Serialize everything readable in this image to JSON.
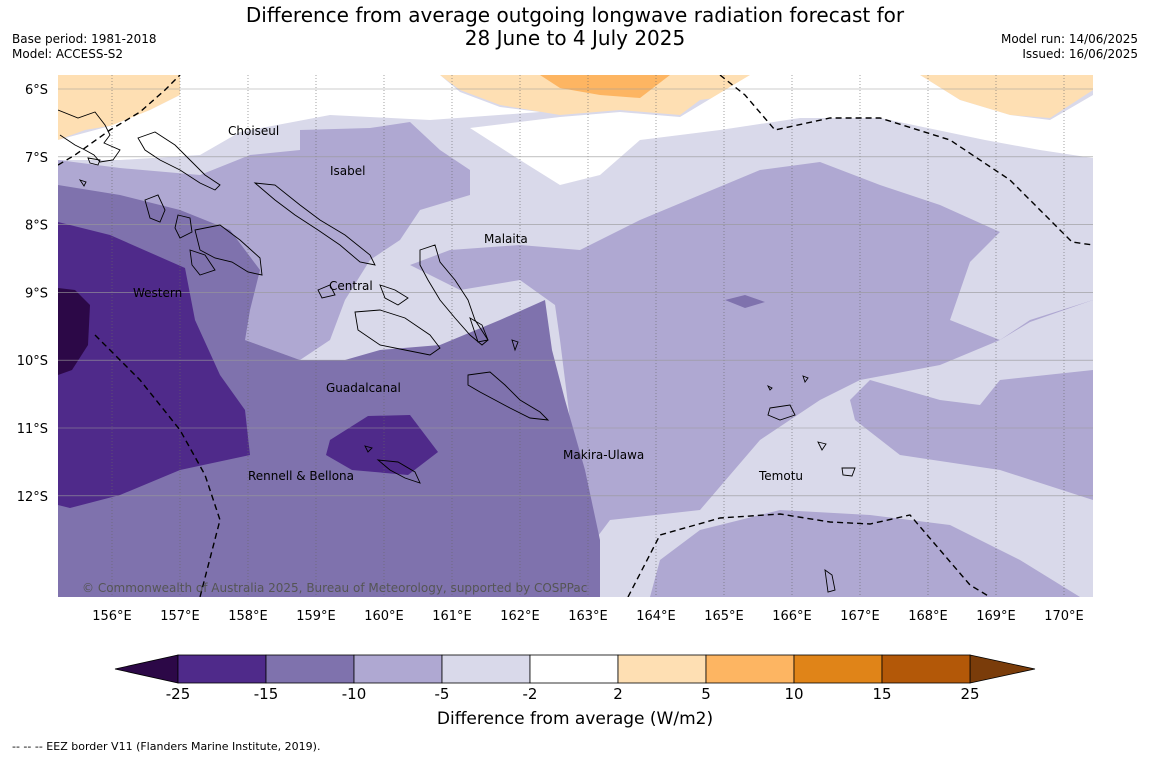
{
  "title": {
    "line1": "Difference from average outgoing longwave radiation forecast for",
    "line2": "28 June to 4 July 2025"
  },
  "meta": {
    "base_period": "Base period: 1981-2018",
    "model": "Model: ACCESS-S2",
    "model_run": "Model run: 14/06/2025",
    "issued": "Issued: 16/06/2025"
  },
  "map": {
    "lon_labels": [
      "156°E",
      "157°E",
      "158°E",
      "159°E",
      "160°E",
      "161°E",
      "162°E",
      "163°E",
      "164°E",
      "165°E",
      "166°E",
      "167°E",
      "168°E",
      "169°E",
      "170°E"
    ],
    "lat_labels": [
      "6°S",
      "7°S",
      "8°S",
      "9°S",
      "10°S",
      "11°S",
      "12°S"
    ],
    "province_labels": [
      "Choiseul",
      "Isabel",
      "Malaita",
      "Western",
      "Central",
      "Guadalcanal",
      "Makira-Ulawa",
      "Rennell & Bellona",
      "Temotu"
    ],
    "copyright": "© Commonwealth of Australia 2025, Bureau of Meteorology, supported by COSPPac"
  },
  "colorbar": {
    "title": "Difference from average (W/m2)",
    "ticks": [
      "-25",
      "-15",
      "-10",
      "-5",
      "-2",
      "2",
      "5",
      "10",
      "15",
      "25"
    ],
    "colors": [
      "#4f2a8a",
      "#7f72ad",
      "#afa8d2",
      "#d9d9ea",
      "#ffffff",
      "#fedfb3",
      "#fdb562",
      "#e08418",
      "#b35808"
    ],
    "under_color": "#2c0847",
    "over_color": "#7a3c0a"
  },
  "footer": "--  --  -- EEZ border V11 (Flanders Marine Institute, 2019)."
}
